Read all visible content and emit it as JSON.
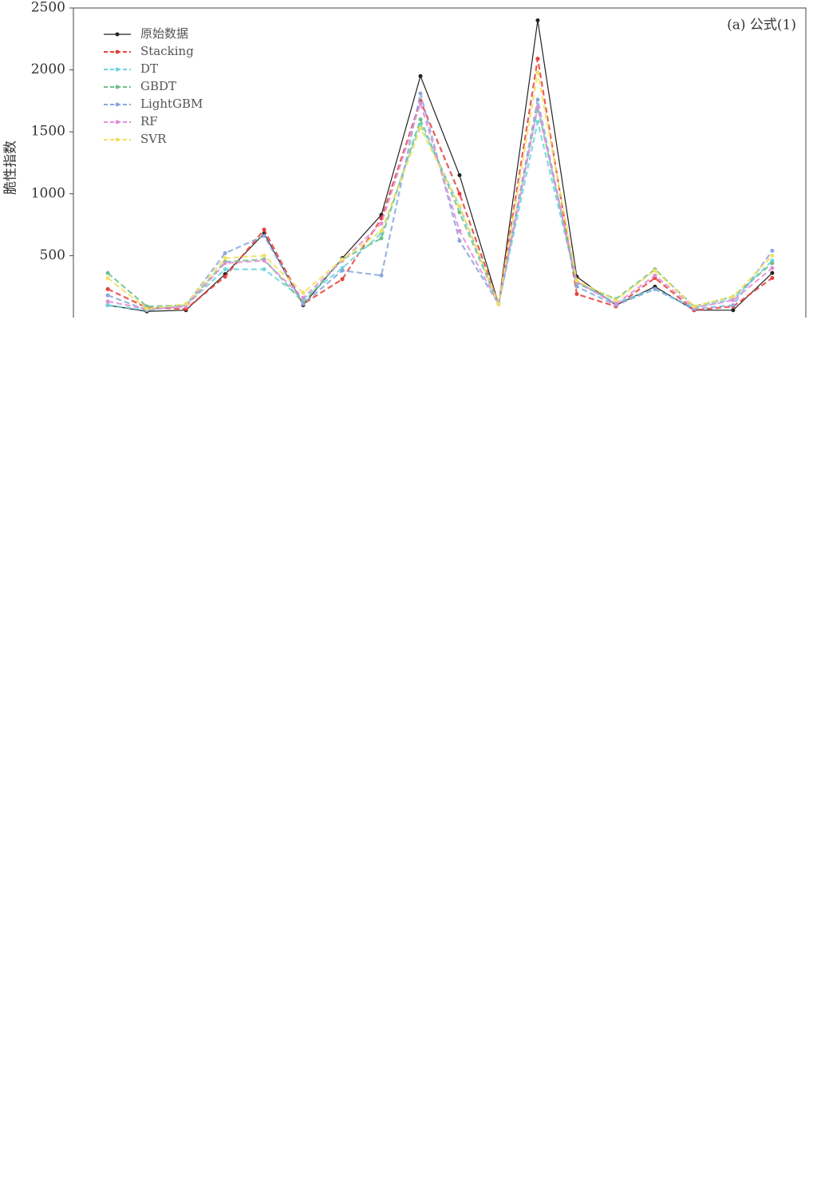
{
  "chart_data": {
    "type": "line",
    "y_label": "脆性指数",
    "annotation": "(a) 公式(1)",
    "x": [
      1,
      2,
      3,
      4,
      5,
      6,
      7,
      8,
      9,
      10,
      11,
      12,
      13,
      14,
      15,
      16,
      17,
      18
    ],
    "xlim": [
      0.12,
      18.86
    ],
    "ylim": [
      0,
      2500
    ],
    "yticks": [
      500,
      1000,
      1500,
      2000,
      2500
    ],
    "legend": "upper left",
    "series": [
      {
        "name": "原始数据",
        "color": "#222222",
        "dashed": false,
        "values": [
          100,
          50,
          60,
          350,
          680,
          100,
          480,
          830,
          1950,
          1150,
          110,
          2400,
          330,
          100,
          250,
          60,
          60,
          360
        ]
      },
      {
        "name": "Stacking",
        "color": "#e8403a",
        "dashed": true,
        "values": [
          230,
          80,
          70,
          330,
          710,
          110,
          310,
          800,
          1750,
          1000,
          110,
          2090,
          190,
          90,
          320,
          60,
          90,
          320
        ]
      },
      {
        "name": "DT",
        "color": "#6dd5df",
        "dashed": true,
        "values": [
          100,
          60,
          100,
          390,
          390,
          150,
          400,
          680,
          1560,
          900,
          110,
          1580,
          280,
          120,
          230,
          80,
          150,
          460
        ]
      },
      {
        "name": "GBDT",
        "color": "#6cc08b",
        "dashed": true,
        "values": [
          360,
          90,
          100,
          450,
          470,
          120,
          470,
          640,
          1600,
          850,
          110,
          1700,
          280,
          150,
          390,
          90,
          170,
          440
        ]
      },
      {
        "name": "LightGBM",
        "color": "#8aa8db",
        "dashed": true,
        "values": [
          180,
          60,
          100,
          520,
          660,
          110,
          380,
          340,
          1810,
          620,
          110,
          1760,
          250,
          100,
          230,
          70,
          100,
          540
        ]
      },
      {
        "name": "RF",
        "color": "#e08ed8",
        "dashed": true,
        "values": [
          130,
          70,
          90,
          440,
          460,
          160,
          460,
          760,
          1730,
          700,
          110,
          1700,
          290,
          110,
          340,
          80,
          140,
          400
        ]
      },
      {
        "name": "SVR",
        "color": "#f0e060",
        "dashed": true,
        "values": [
          320,
          70,
          110,
          480,
          500,
          200,
          470,
          700,
          1530,
          900,
          110,
          1980,
          300,
          140,
          380,
          90,
          170,
          500
        ]
      }
    ]
  }
}
